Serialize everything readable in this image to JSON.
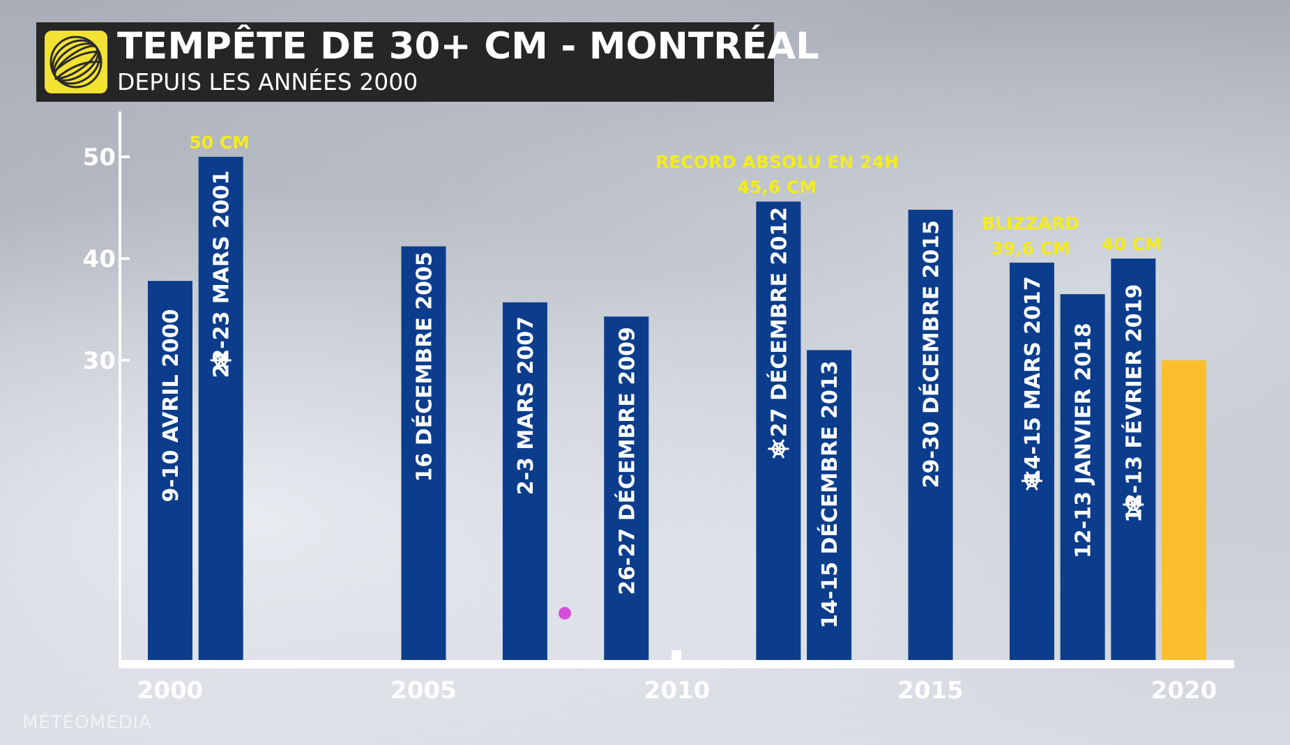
{
  "title": "TEMPÊTE DE 30+ CM - MONTRÉAL",
  "subtitle": "DEPUIS LES ANNÉES 2000",
  "brand": "MÉTÉOMÉDIA",
  "colors": {
    "bar": "#0b3d8c",
    "highlight_bar": "#fbbf2e",
    "annotation": "#f4ec1c",
    "axis": "#ffffff",
    "title_bg": "#262626",
    "logo": "#f2e233"
  },
  "chart_data": {
    "type": "bar",
    "xlim": [
      2000,
      2020
    ],
    "ylim": [
      0,
      55
    ],
    "yticks": [
      30,
      40,
      50
    ],
    "xticks": [
      2000,
      2005,
      2010,
      2015,
      2020
    ],
    "bars": [
      {
        "x": 2000,
        "value": 37.8,
        "label": "9-10 AVRIL 2000",
        "snowflake": false
      },
      {
        "x": 2001,
        "value": 50.0,
        "label": "22-23 MARS 2001",
        "snowflake": true
      },
      {
        "x": 2005,
        "value": 41.2,
        "label": "16 DÉCEMBRE 2005",
        "snowflake": false
      },
      {
        "x": 2007,
        "value": 35.7,
        "label": "2-3 MARS 2007",
        "snowflake": false
      },
      {
        "x": 2009,
        "value": 34.3,
        "label": "26-27 DÉCEMBRE 2009",
        "snowflake": false
      },
      {
        "x": 2012,
        "value": 45.6,
        "label": "27 DÉCEMBRE 2012",
        "snowflake": true
      },
      {
        "x": 2013,
        "value": 31.0,
        "label": "14-15 DÉCEMBRE 2013",
        "snowflake": false
      },
      {
        "x": 2015,
        "value": 44.8,
        "label": "29-30 DÉCEMBRE 2015",
        "snowflake": false
      },
      {
        "x": 2017,
        "value": 39.6,
        "label": "14-15 MARS 2017",
        "snowflake": true
      },
      {
        "x": 2018,
        "value": 36.5,
        "label": "12-13 JANVIER 2018",
        "snowflake": false
      },
      {
        "x": 2019,
        "value": 40.0,
        "label": "12-13 FÉVRIER 2019",
        "snowflake": true
      },
      {
        "x": 2020,
        "value": 30.0,
        "label": "",
        "snowflake": false,
        "highlight": true
      }
    ],
    "annotations": [
      {
        "x": 2001,
        "value": 50.0,
        "lines": [
          "50 CM"
        ]
      },
      {
        "x": 2012,
        "value": 45.6,
        "lines": [
          "RECORD ABSOLU EN 24H",
          "45,6 CM"
        ]
      },
      {
        "x": 2017,
        "value": 39.6,
        "lines": [
          "BLIZZARD",
          "39,6 CM"
        ]
      },
      {
        "x": 2019,
        "value": 40.0,
        "lines": [
          "40 CM"
        ]
      }
    ]
  }
}
